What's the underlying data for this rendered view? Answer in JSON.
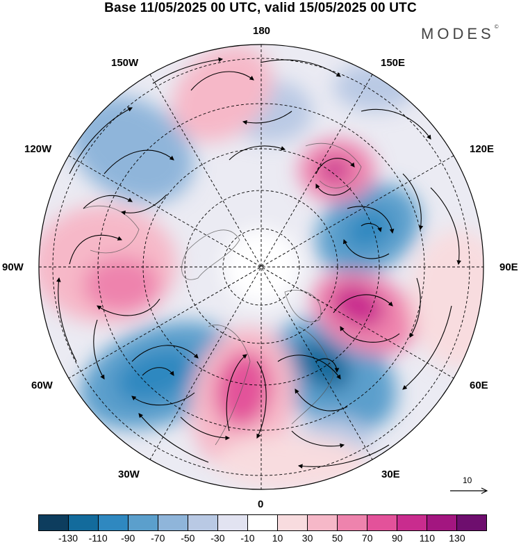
{
  "header": {
    "title": "Base 11/05/2025 00 UTC, valid 15/05/2025 00 UTC",
    "brand": "MODES",
    "brand_mark": "©"
  },
  "longitude_labels": {
    "lon_180": "180",
    "lon_150e": "150E",
    "lon_120e": "120E",
    "lon_90e": "90E",
    "lon_60e": "60E",
    "lon_30e": "30E",
    "lon_0": "0",
    "lon_30w": "30W",
    "lon_60w": "60W",
    "lon_90w": "90W",
    "lon_120w": "120W",
    "lon_150w": "150W"
  },
  "reference_vector": {
    "label": "10"
  },
  "colorbar": {
    "colors": [
      "#0d3d5e",
      "#136b9c",
      "#2f88c0",
      "#5b9fcc",
      "#8fb5da",
      "#b9c9e4",
      "#e2e3f1",
      "#ffffff",
      "#f8dcdf",
      "#f6b8c8",
      "#ee83ad",
      "#e3529a",
      "#c92c8e",
      "#a31680",
      "#6e0e6e"
    ],
    "labels": [
      "-130",
      "-110",
      "-90",
      "-70",
      "-50",
      "-30",
      "-10",
      "10",
      "30",
      "50",
      "70",
      "90",
      "110",
      "130"
    ]
  }
}
